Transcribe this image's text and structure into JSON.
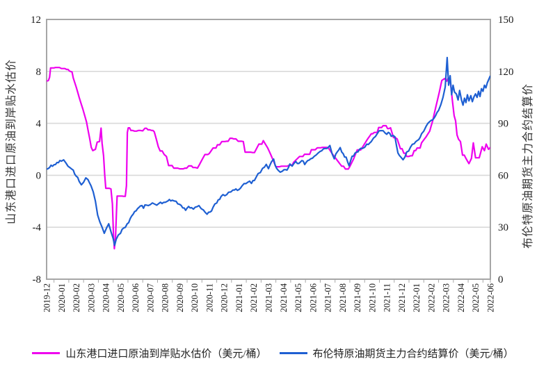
{
  "chart_data": {
    "type": "line",
    "title": "",
    "x_categories": [
      "2019-12",
      "2020-01",
      "2020-02",
      "2020-03",
      "2020-04",
      "2020-05",
      "2020-06",
      "2020-07",
      "2020-08",
      "2020-09",
      "2020-10",
      "2020-11",
      "2020-12",
      "2021-01",
      "2021-02",
      "2021-03",
      "2021-04",
      "2021-05",
      "2021-06",
      "2021-07",
      "2021-08",
      "2021-09",
      "2021-10",
      "2021-11",
      "2021-12",
      "2022-01",
      "2022-02",
      "2022-03",
      "2022-04",
      "2022-05",
      "2022-06"
    ],
    "left_axis": {
      "title": "山东港口进口原油到岸贴水估价",
      "min": -8,
      "max": 12,
      "ticks": [
        12,
        8,
        4,
        0,
        -4,
        -8
      ]
    },
    "right_axis": {
      "title": "布伦特原油期货主力合约结算价",
      "min": 0,
      "max": 150,
      "ticks": [
        150,
        120,
        90,
        60,
        30,
        0
      ]
    },
    "grid": {
      "color": "#d9d9d9",
      "left_values": [
        8,
        4,
        0,
        -4
      ],
      "axis_color": "#a6a6a6",
      "tick_label_color": "#1a1a1a"
    },
    "legend_position": "bottom",
    "series": [
      {
        "name": "山东港口进口原油到岸贴水估价（美元/桶）",
        "id": "shandong-premium",
        "axis": "left",
        "unit": "美元/桶",
        "color": "#ee00ee",
        "points": [
          [
            0,
            7.25
          ],
          [
            0.12,
            7.3
          ],
          [
            0.2,
            7.55
          ],
          [
            0.27,
            8.27
          ],
          [
            0.6,
            8.3
          ],
          [
            1.0,
            8.22
          ],
          [
            1.35,
            8.15
          ],
          [
            1.55,
            8.02
          ],
          [
            1.72,
            7.95
          ],
          [
            1.8,
            7.5
          ],
          [
            2.0,
            6.8
          ],
          [
            2.2,
            6.0
          ],
          [
            2.45,
            5.1
          ],
          [
            2.7,
            4.1
          ],
          [
            2.9,
            2.9
          ],
          [
            3.02,
            2.15
          ],
          [
            3.12,
            1.9
          ],
          [
            3.3,
            2.0
          ],
          [
            3.42,
            2.55
          ],
          [
            3.58,
            2.6
          ],
          [
            3.68,
            3.63
          ],
          [
            3.75,
            2.45
          ],
          [
            3.85,
            1.5
          ],
          [
            3.93,
            0.0
          ],
          [
            4.0,
            -1.0
          ],
          [
            4.35,
            -1.05
          ],
          [
            4.45,
            -2.2
          ],
          [
            4.52,
            -4.5
          ],
          [
            4.58,
            -5.65
          ],
          [
            4.66,
            -4.8
          ],
          [
            4.72,
            -2.9
          ],
          [
            4.77,
            -1.6
          ],
          [
            5.32,
            -1.62
          ],
          [
            5.4,
            -0.8
          ],
          [
            5.46,
            3.3
          ],
          [
            5.52,
            3.65
          ],
          [
            5.7,
            3.45
          ],
          [
            5.95,
            3.4
          ],
          [
            6.2,
            3.45
          ],
          [
            6.5,
            3.42
          ],
          [
            6.65,
            3.62
          ],
          [
            6.85,
            3.5
          ],
          [
            7.1,
            3.45
          ],
          [
            7.28,
            3.35
          ],
          [
            7.42,
            2.77
          ],
          [
            7.55,
            2.2
          ],
          [
            7.68,
            1.87
          ],
          [
            7.95,
            1.6
          ],
          [
            8.1,
            1.45
          ],
          [
            8.25,
            0.75
          ],
          [
            8.6,
            0.55
          ],
          [
            9.0,
            0.5
          ],
          [
            9.35,
            0.55
          ],
          [
            9.6,
            0.72
          ],
          [
            9.9,
            0.6
          ],
          [
            10.2,
            0.55
          ],
          [
            10.45,
            1.07
          ],
          [
            10.7,
            1.6
          ],
          [
            11.0,
            1.68
          ],
          [
            11.25,
            2.1
          ],
          [
            11.55,
            2.35
          ],
          [
            11.85,
            2.6
          ],
          [
            12.15,
            2.62
          ],
          [
            12.4,
            2.85
          ],
          [
            12.65,
            2.8
          ],
          [
            12.95,
            2.62
          ],
          [
            13.3,
            2.6
          ],
          [
            13.42,
            1.78
          ],
          [
            14.05,
            1.75
          ],
          [
            14.35,
            2.4
          ],
          [
            14.65,
            2.67
          ],
          [
            14.95,
            2.1
          ],
          [
            15.15,
            1.6
          ],
          [
            15.5,
            0.66
          ],
          [
            16.0,
            0.7
          ],
          [
            16.4,
            0.78
          ],
          [
            16.7,
            1.0
          ],
          [
            17.1,
            1.45
          ],
          [
            17.55,
            1.62
          ],
          [
            17.9,
            1.97
          ],
          [
            18.3,
            2.12
          ],
          [
            18.75,
            2.15
          ],
          [
            19.05,
            2.1
          ],
          [
            19.35,
            1.6
          ],
          [
            19.65,
            1.15
          ],
          [
            19.95,
            0.7
          ],
          [
            20.2,
            0.48
          ],
          [
            20.5,
            0.68
          ],
          [
            20.75,
            1.25
          ],
          [
            21.0,
            1.95
          ],
          [
            21.35,
            2.15
          ],
          [
            21.65,
            2.7
          ],
          [
            21.95,
            3.2
          ],
          [
            22.15,
            3.3
          ],
          [
            22.45,
            3.68
          ],
          [
            22.75,
            3.82
          ],
          [
            23.05,
            3.6
          ],
          [
            23.25,
            3.66
          ],
          [
            23.45,
            2.9
          ],
          [
            23.7,
            2.8
          ],
          [
            23.92,
            2.05
          ],
          [
            24.15,
            1.7
          ],
          [
            24.35,
            1.45
          ],
          [
            24.6,
            1.5
          ],
          [
            24.85,
            1.9
          ],
          [
            25.05,
            2.1
          ],
          [
            25.35,
            2.5
          ],
          [
            25.65,
            2.95
          ],
          [
            25.9,
            3.4
          ],
          [
            26.1,
            4.2
          ],
          [
            26.3,
            5.2
          ],
          [
            26.55,
            6.4
          ],
          [
            26.72,
            7.3
          ],
          [
            26.9,
            7.45
          ],
          [
            27.05,
            7.25
          ],
          [
            27.15,
            7.5
          ],
          [
            27.3,
            7.2
          ],
          [
            27.42,
            5.9
          ],
          [
            27.55,
            4.6
          ],
          [
            27.65,
            4.2
          ],
          [
            27.75,
            3.1
          ],
          [
            27.85,
            2.77
          ],
          [
            27.98,
            2.6
          ],
          [
            28.12,
            1.55
          ],
          [
            28.35,
            1.3
          ],
          [
            28.55,
            0.9
          ],
          [
            28.72,
            1.3
          ],
          [
            28.85,
            2.5
          ],
          [
            29.0,
            1.35
          ],
          [
            29.25,
            1.35
          ],
          [
            29.45,
            2.2
          ],
          [
            29.6,
            1.9
          ],
          [
            29.72,
            2.4
          ],
          [
            29.88,
            2.0
          ],
          [
            30,
            2.15
          ]
        ]
      },
      {
        "name": "布伦特原油期货主力合约结算价（美元/桶）",
        "id": "brent-settlement",
        "axis": "right",
        "unit": "美元/桶",
        "color": "#1e5fd2",
        "points": [
          [
            0,
            63.5
          ],
          [
            0.2,
            64.5
          ],
          [
            0.4,
            65.2
          ],
          [
            0.6,
            66.2
          ],
          [
            0.8,
            67.3
          ],
          [
            1.0,
            68.2
          ],
          [
            1.15,
            68.9
          ],
          [
            1.3,
            67.2
          ],
          [
            1.45,
            65.2
          ],
          [
            1.6,
            64.3
          ],
          [
            1.8,
            63.0
          ],
          [
            2.0,
            59.5
          ],
          [
            2.2,
            56.5
          ],
          [
            2.35,
            54.5
          ],
          [
            2.5,
            56.0
          ],
          [
            2.65,
            58.5
          ],
          [
            2.8,
            57.5
          ],
          [
            3.0,
            54.0
          ],
          [
            3.15,
            50.5
          ],
          [
            3.3,
            45.0
          ],
          [
            3.45,
            37.0
          ],
          [
            3.6,
            33.0
          ],
          [
            3.75,
            30.0
          ],
          [
            3.9,
            26.5
          ],
          [
            4.05,
            29.5
          ],
          [
            4.2,
            32.0
          ],
          [
            4.35,
            27.5
          ],
          [
            4.5,
            23.5
          ],
          [
            4.6,
            19.5
          ],
          [
            4.7,
            23.0
          ],
          [
            4.85,
            25.5
          ],
          [
            5.0,
            26.5
          ],
          [
            5.2,
            29.5
          ],
          [
            5.45,
            32.0
          ],
          [
            5.65,
            35.0
          ],
          [
            5.85,
            37.5
          ],
          [
            6.05,
            39.5
          ],
          [
            6.25,
            41.5
          ],
          [
            6.45,
            42.5
          ],
          [
            6.55,
            41.0
          ],
          [
            6.75,
            42.8
          ],
          [
            7.0,
            43.0
          ],
          [
            7.3,
            43.4
          ],
          [
            7.6,
            43.8
          ],
          [
            7.9,
            44.3
          ],
          [
            8.2,
            45.2
          ],
          [
            8.5,
            45.6
          ],
          [
            8.75,
            45.0
          ],
          [
            9.0,
            43.2
          ],
          [
            9.2,
            41.2
          ],
          [
            9.4,
            39.8
          ],
          [
            9.6,
            42.0
          ],
          [
            9.8,
            41.3
          ],
          [
            10.05,
            41.6
          ],
          [
            10.3,
            42.5
          ],
          [
            10.6,
            40.0
          ],
          [
            10.85,
            37.5
          ],
          [
            11.05,
            38.8
          ],
          [
            11.25,
            41.5
          ],
          [
            11.5,
            44.0
          ],
          [
            11.8,
            47.8
          ],
          [
            12.05,
            48.2
          ],
          [
            12.3,
            50.2
          ],
          [
            12.6,
            51.5
          ],
          [
            12.9,
            51.3
          ],
          [
            13.1,
            52.5
          ],
          [
            13.35,
            55.2
          ],
          [
            13.6,
            56.0
          ],
          [
            13.85,
            55.3
          ],
          [
            14.05,
            57.0
          ],
          [
            14.3,
            61.0
          ],
          [
            14.6,
            64.0
          ],
          [
            14.85,
            66.3
          ],
          [
            15.0,
            63.8
          ],
          [
            15.2,
            67.8
          ],
          [
            15.35,
            69.4
          ],
          [
            15.55,
            64.0
          ],
          [
            15.8,
            61.8
          ],
          [
            16.05,
            63.2
          ],
          [
            16.25,
            63.0
          ],
          [
            16.45,
            66.5
          ],
          [
            16.6,
            65.3
          ],
          [
            16.85,
            68.0
          ],
          [
            17.05,
            66.8
          ],
          [
            17.25,
            68.5
          ],
          [
            17.45,
            66.2
          ],
          [
            17.65,
            68.5
          ],
          [
            17.85,
            69.5
          ],
          [
            18.1,
            71.0
          ],
          [
            18.35,
            72.8
          ],
          [
            18.6,
            74.2
          ],
          [
            18.85,
            75.5
          ],
          [
            19.05,
            76.2
          ],
          [
            19.15,
            77.2
          ],
          [
            19.3,
            72.5
          ],
          [
            19.45,
            69.5
          ],
          [
            19.65,
            73.5
          ],
          [
            19.85,
            76.0
          ],
          [
            20.05,
            72.5
          ],
          [
            20.25,
            70.5
          ],
          [
            20.45,
            65.5
          ],
          [
            20.65,
            71.0
          ],
          [
            20.85,
            72.8
          ],
          [
            21.05,
            73.5
          ],
          [
            21.35,
            75.5
          ],
          [
            21.65,
            78.0
          ],
          [
            21.95,
            79.5
          ],
          [
            22.1,
            81.5
          ],
          [
            22.35,
            84.0
          ],
          [
            22.6,
            85.8
          ],
          [
            22.9,
            84.3
          ],
          [
            23.1,
            84.8
          ],
          [
            23.3,
            82.5
          ],
          [
            23.55,
            82.2
          ],
          [
            23.75,
            72.9
          ],
          [
            23.95,
            70.5
          ],
          [
            24.1,
            69.0
          ],
          [
            24.35,
            73.5
          ],
          [
            24.6,
            76.3
          ],
          [
            24.85,
            78.2
          ],
          [
            25.05,
            80.0
          ],
          [
            25.35,
            84.0
          ],
          [
            25.65,
            88.2
          ],
          [
            25.9,
            91.0
          ],
          [
            26.1,
            92.0
          ],
          [
            26.3,
            94.5
          ],
          [
            26.5,
            97.5
          ],
          [
            26.65,
            100.8
          ],
          [
            26.8,
            105.0
          ],
          [
            26.95,
            111.0
          ],
          [
            27.08,
            128.0
          ],
          [
            27.18,
            112.0
          ],
          [
            27.28,
            117.5
          ],
          [
            27.38,
            106.5
          ],
          [
            27.48,
            112.0
          ],
          [
            27.58,
            108.0
          ],
          [
            27.7,
            107.0
          ],
          [
            27.82,
            103.5
          ],
          [
            27.92,
            109.0
          ],
          [
            28.05,
            103.5
          ],
          [
            28.15,
            100.5
          ],
          [
            28.25,
            104.5
          ],
          [
            28.35,
            102.0
          ],
          [
            28.45,
            106.5
          ],
          [
            28.55,
            103.0
          ],
          [
            28.68,
            106.0
          ],
          [
            28.78,
            102.5
          ],
          [
            28.9,
            105.5
          ],
          [
            29.0,
            107.0
          ],
          [
            29.1,
            105.0
          ],
          [
            29.2,
            108.5
          ],
          [
            29.3,
            105.5
          ],
          [
            29.4,
            110.0
          ],
          [
            29.5,
            108.5
          ],
          [
            29.6,
            112.0
          ],
          [
            29.7,
            110.5
          ],
          [
            29.8,
            113.5
          ],
          [
            29.9,
            115.5
          ],
          [
            30,
            117.5
          ]
        ]
      }
    ]
  }
}
